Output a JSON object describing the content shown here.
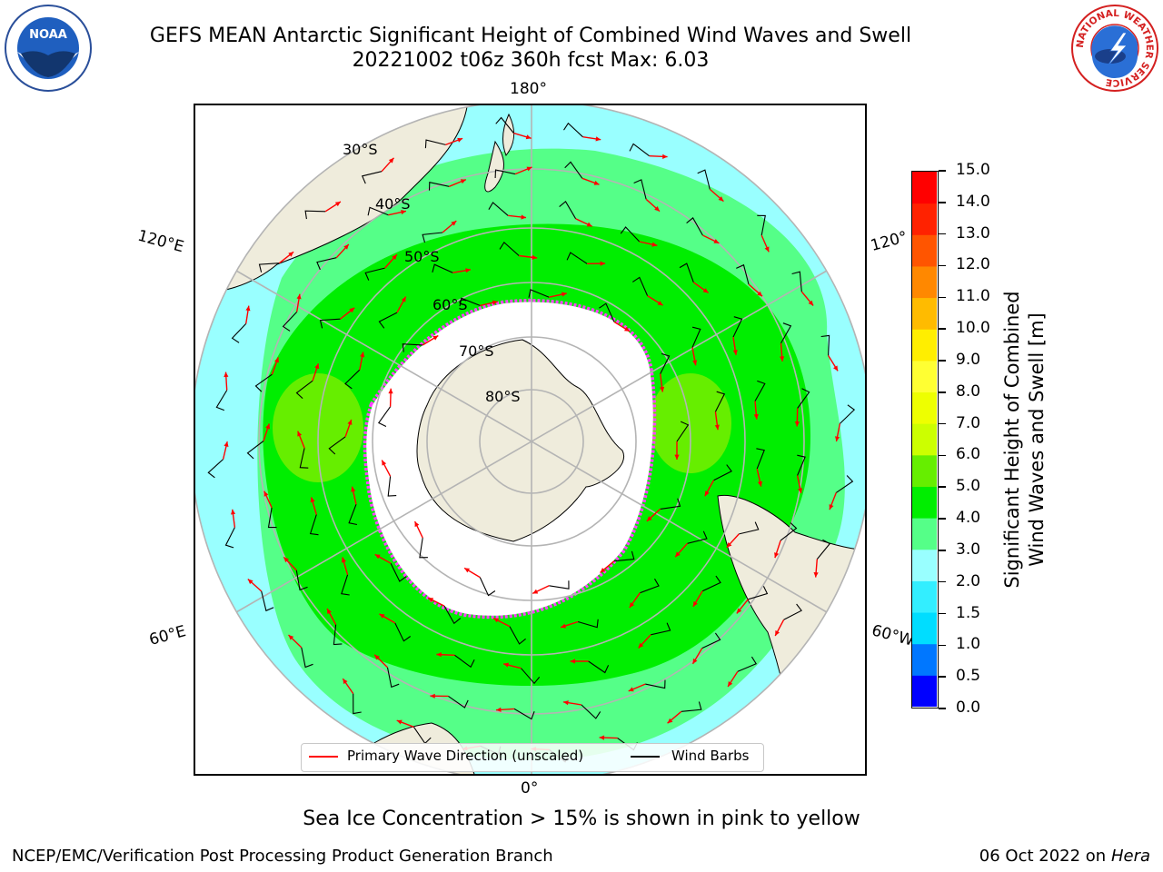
{
  "header": {
    "title_line1": "GEFS MEAN Antarctic Significant Height of Combined Wind Waves and Swell",
    "title_line2": "20221002 t06z 360h fcst   Max: 6.03"
  },
  "logos": {
    "left_text": "NOAA",
    "right_text": "NATIONAL WEATHER SERVICE"
  },
  "map": {
    "projection": "south polar stereographic",
    "longitude_labels": {
      "top": "180°",
      "bottom": "0°",
      "left_upper": "120°E",
      "left_lower": "60°E",
      "right_upper": "120°",
      "right_lower": "60°W"
    },
    "latitude_labels": [
      "30°S",
      "40°S",
      "50°S",
      "60°S",
      "70°S",
      "80°S"
    ],
    "colors": {
      "land": "#efecdc",
      "sea_ice": "#ffffff",
      "ice_edge": "#ff44ff",
      "wave_arrow": "#ff0000",
      "wind_barb": "#000000",
      "gridline": "#b4b4b4"
    }
  },
  "colorbar": {
    "label": "Significant Height of Combined\nWind Waves and Swell [m]",
    "ticks": [
      "0.0",
      "0.5",
      "1.0",
      "1.5",
      "2.0",
      "3.0",
      "4.0",
      "5.0",
      "6.0",
      "7.0",
      "8.0",
      "9.0",
      "10.0",
      "11.0",
      "12.0",
      "13.0",
      "14.0",
      "15.0"
    ],
    "colors": [
      "#0000ff",
      "#0077ff",
      "#00ddff",
      "#33eeff",
      "#99ffff",
      "#55ff88",
      "#00ee00",
      "#66ee00",
      "#ccff00",
      "#eeff00",
      "#ffff33",
      "#ffee00",
      "#ffbb00",
      "#ff8800",
      "#ff5500",
      "#ff2200",
      "#ff0000"
    ]
  },
  "legend": {
    "wave_label": "Primary Wave Direction (unscaled)",
    "wind_label": "Wind Barbs"
  },
  "bottom_note": "Sea Ice Concentration > 15% is shown in pink to yellow",
  "footer": {
    "left": "NCEP/EMC/Verification Post Processing Product Generation Branch",
    "right_date": "06 Oct 2022 on ",
    "right_host": "Hera"
  }
}
